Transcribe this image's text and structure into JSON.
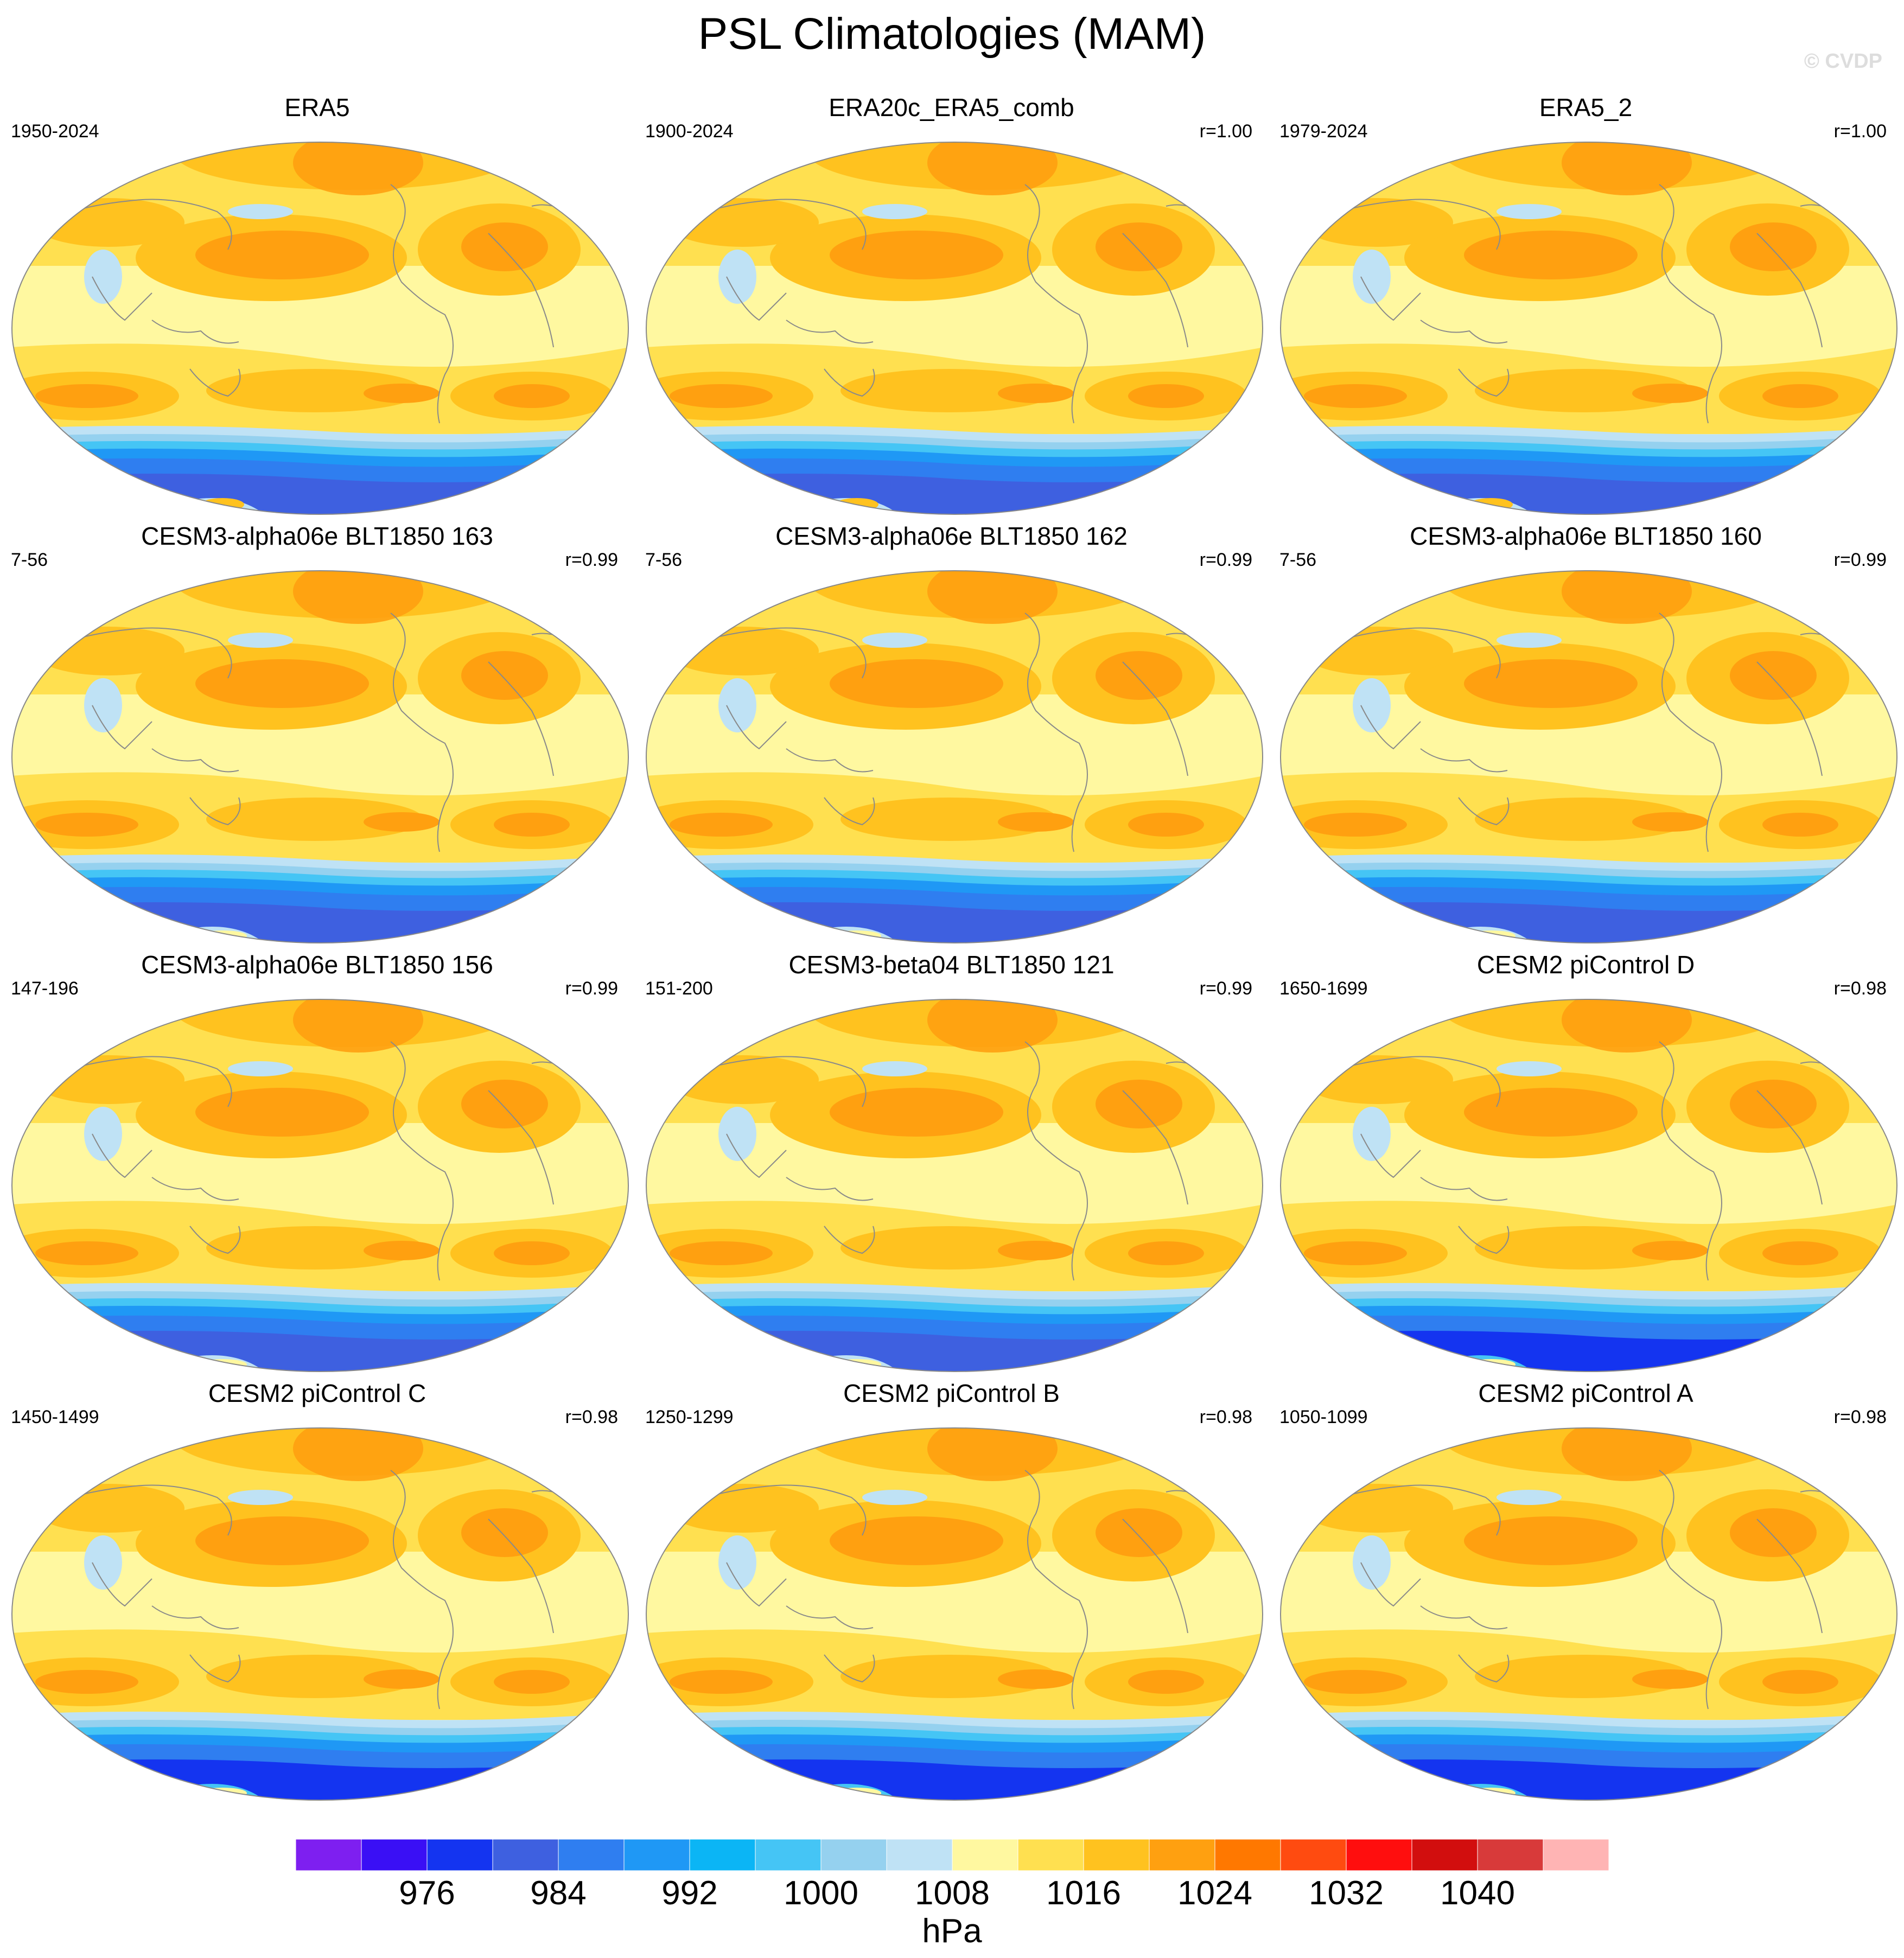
{
  "header": {
    "title": "PSL Climatologies (MAM)",
    "copyright": "© CVDP"
  },
  "panels": [
    {
      "title": "ERA5",
      "years": "1950-2024",
      "corr": "",
      "polar": "obs"
    },
    {
      "title": "ERA20c_ERA5_comb",
      "years": "1900-2024",
      "corr": "r=1.00",
      "polar": "obs"
    },
    {
      "title": "ERA5_2",
      "years": "1979-2024",
      "corr": "r=1.00",
      "polar": "obs"
    },
    {
      "title": "CESM3-alpha06e BLT1850 163",
      "years": "7-56",
      "corr": "r=0.99",
      "polar": "model"
    },
    {
      "title": "CESM3-alpha06e BLT1850 162",
      "years": "7-56",
      "corr": "r=0.99",
      "polar": "model"
    },
    {
      "title": "CESM3-alpha06e BLT1850 160",
      "years": "7-56",
      "corr": "r=0.99",
      "polar": "model"
    },
    {
      "title": "CESM3-alpha06e BLT1850 156",
      "years": "147-196",
      "corr": "r=0.99",
      "polar": "model"
    },
    {
      "title": "CESM3-beta04 BLT1850 121",
      "years": "151-200",
      "corr": "r=0.99",
      "polar": "model"
    },
    {
      "title": "CESM2 piControl D",
      "years": "1650-1699",
      "corr": "r=0.98",
      "polar": "deep"
    },
    {
      "title": "CESM2 piControl C",
      "years": "1450-1499",
      "corr": "r=0.98",
      "polar": "deep"
    },
    {
      "title": "CESM2 piControl B",
      "years": "1250-1299",
      "corr": "r=0.98",
      "polar": "deep"
    },
    {
      "title": "CESM2 piControl A",
      "years": "1050-1099",
      "corr": "r=0.98",
      "polar": "deep"
    }
  ],
  "colorbar": {
    "unit": "hPa",
    "colors": [
      "#7e1ff0",
      "#3a0ff5",
      "#1434f0",
      "#3e60e0",
      "#2f7ef0",
      "#1f98f5",
      "#0bb5f5",
      "#45c5f5",
      "#95d1ef",
      "#bfe2f5",
      "#fff8a0",
      "#ffe050",
      "#ffc21f",
      "#ffa010",
      "#ff7800",
      "#ff4b10",
      "#ff0e0e",
      "#d20e0e",
      "#d83a3a",
      "#ffb4b4"
    ],
    "tick_labels": [
      "976",
      "984",
      "992",
      "1000",
      "1008",
      "1016",
      "1024",
      "1032",
      "1040"
    ]
  }
}
